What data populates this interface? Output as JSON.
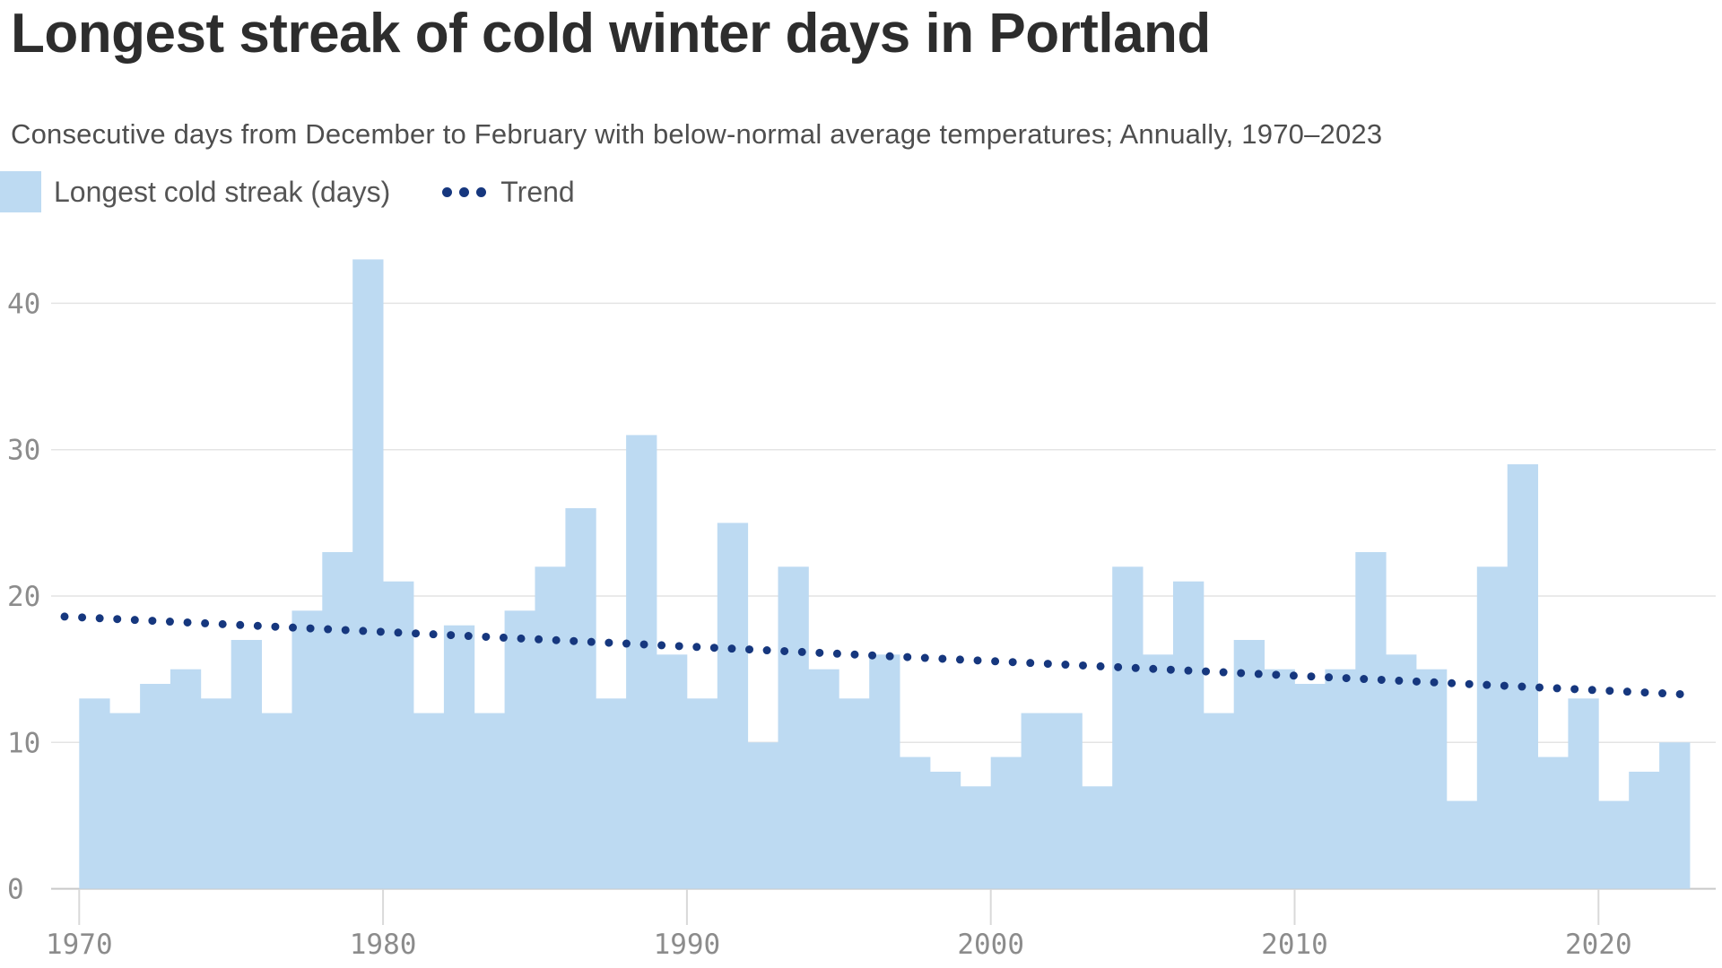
{
  "header": {
    "title": "Longest streak of cold winter days in Portland",
    "subtitle": "Consecutive days from December to February with below-normal average temperatures; Annually, 1970–2023"
  },
  "legend": {
    "bar_label": "Longest cold streak (days)",
    "trend_label": "Trend"
  },
  "colors": {
    "bar": "#BDDAF2",
    "trend": "#16377E",
    "grid": "#E4E4E4",
    "baseline": "#C9C9C9",
    "tick": "#D9D9D9",
    "axis_text": "#8C8C8C",
    "title_text": "#2D2D2D",
    "subtitle_text": "#4E4E4E"
  },
  "chart_data": {
    "type": "bar",
    "title": "Longest streak of cold winter days in Portland",
    "xlabel": "",
    "ylabel": "Longest cold streak (days)",
    "x": [
      1970,
      1971,
      1972,
      1973,
      1974,
      1975,
      1976,
      1977,
      1978,
      1979,
      1980,
      1981,
      1982,
      1983,
      1984,
      1985,
      1986,
      1987,
      1988,
      1989,
      1990,
      1991,
      1992,
      1993,
      1994,
      1995,
      1996,
      1997,
      1998,
      1999,
      2000,
      2001,
      2002,
      2003,
      2004,
      2005,
      2006,
      2007,
      2008,
      2009,
      2010,
      2011,
      2012,
      2013,
      2014,
      2015,
      2016,
      2017,
      2018,
      2019,
      2020,
      2021,
      2022,
      2023
    ],
    "values": [
      13,
      12,
      14,
      15,
      13,
      17,
      12,
      19,
      23,
      43,
      21,
      12,
      18,
      12,
      19,
      22,
      26,
      13,
      31,
      16,
      13,
      25,
      10,
      22,
      15,
      13,
      16,
      9,
      8,
      7,
      9,
      12,
      12,
      7,
      22,
      16,
      21,
      12,
      17,
      15,
      14,
      15,
      23,
      16,
      15,
      6,
      22,
      29,
      9,
      13,
      6,
      8,
      10,
      0
    ],
    "series_name": "Longest cold streak (days)",
    "trend": {
      "name": "Trend",
      "start_year": 1970,
      "end_year": 2023,
      "start_value": 18.6,
      "end_value": 13.25
    },
    "y_ticks": [
      0,
      10,
      20,
      30,
      40
    ],
    "x_ticks": [
      1970,
      1980,
      1990,
      2000,
      2010,
      2020
    ],
    "ylim": [
      0,
      45
    ],
    "grid": "horizontal",
    "legend_position": "top-left"
  }
}
